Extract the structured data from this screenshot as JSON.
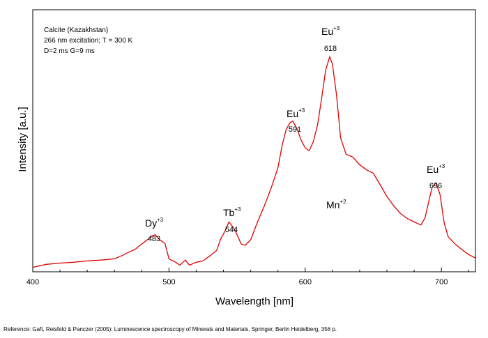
{
  "chart_data": {
    "type": "line",
    "title": "",
    "xlabel": "Wavelength [nm]",
    "ylabel": "Intensity [a.u.]",
    "xlim": [
      400,
      725
    ],
    "ylim": [
      0,
      1
    ],
    "x_ticks": [
      400,
      500,
      600,
      700
    ],
    "y_ticks_labeled": false,
    "grid": false,
    "legend": "none",
    "line_color": "#e00000",
    "info_lines": [
      "Calcite (Kazakhstan)",
      "266 nm excitation; T = 300 K",
      "D=2 ms G=9 ms"
    ],
    "series": [
      {
        "x": [
          400,
          410,
          420,
          430,
          440,
          450,
          460,
          465,
          470,
          475,
          480,
          485,
          488,
          490,
          493,
          497,
          500,
          505,
          508,
          512,
          515,
          520,
          525,
          530,
          535,
          538,
          541,
          544,
          547,
          550,
          553,
          556,
          560,
          565,
          570,
          575,
          580,
          583,
          586,
          589,
          591,
          594,
          597,
          600,
          603,
          606,
          609,
          612,
          615,
          618,
          620,
          623,
          626,
          630,
          635,
          640,
          645,
          650,
          655,
          660,
          665,
          670,
          675,
          680,
          685,
          688,
          690,
          693,
          696,
          699,
          702,
          705,
          710,
          715,
          720,
          725
        ],
        "y": [
          0.01,
          0.02,
          0.03,
          0.03,
          0.04,
          0.04,
          0.05,
          0.06,
          0.08,
          0.09,
          0.12,
          0.14,
          0.16,
          0.16,
          0.14,
          0.12,
          0.05,
          0.03,
          0.02,
          0.04,
          0.02,
          0.03,
          0.04,
          0.06,
          0.09,
          0.14,
          0.18,
          0.22,
          0.2,
          0.16,
          0.12,
          0.11,
          0.14,
          0.22,
          0.3,
          0.38,
          0.48,
          0.58,
          0.66,
          0.69,
          0.7,
          0.66,
          0.61,
          0.57,
          0.56,
          0.6,
          0.68,
          0.8,
          0.94,
          1.0,
          0.97,
          0.82,
          0.62,
          0.54,
          0.53,
          0.49,
          0.47,
          0.45,
          0.4,
          0.34,
          0.3,
          0.26,
          0.24,
          0.22,
          0.21,
          0.24,
          0.3,
          0.38,
          0.41,
          0.35,
          0.22,
          0.15,
          0.12,
          0.09,
          0.07,
          0.05
        ]
      }
    ],
    "annotations": [
      {
        "ion": "Dy",
        "charge": "+3",
        "wavelength": "483",
        "x": 483
      },
      {
        "ion": "Tb",
        "charge": "+3",
        "wavelength": "544",
        "x": 544
      },
      {
        "ion": "Eu",
        "charge": "+3",
        "wavelength": "591",
        "x": 591
      },
      {
        "ion": "Eu",
        "charge": "+3",
        "wavelength": "618",
        "x": 618
      },
      {
        "ion": "Eu",
        "charge": "+3",
        "wavelength": "696",
        "x": 696
      },
      {
        "ion": "Mn",
        "charge": "+2",
        "wavelength": "",
        "x": 635
      }
    ]
  },
  "reference": "Reference: Gaft, Reisfeld & Panczer (2005): Luminescence spectroscopy of Minerals and Materials, Springer, Berlin Heidelberg, 356 p."
}
